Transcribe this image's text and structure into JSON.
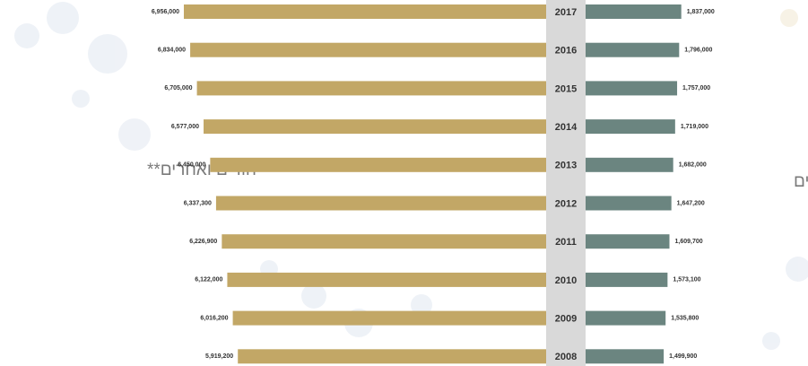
{
  "chart_data": {
    "type": "bar",
    "categories": [
      "2017",
      "2016",
      "2015",
      "2014",
      "2013",
      "2012",
      "2011",
      "2010",
      "2009",
      "2008"
    ],
    "series": [
      {
        "name": "יהודים ואחרים**",
        "color": "#c2a766",
        "values": [
          6956000,
          6834000,
          6705000,
          6577000,
          6450000,
          6337300,
          6226900,
          6122000,
          6016200,
          5919200
        ],
        "value_labels": [
          "6,956,000",
          "6,834,000",
          "6,705,000",
          "6,577,000",
          "6,450,000",
          "6,337,300",
          "6,226,900",
          "6,122,000",
          "6,016,200",
          "5,919,200"
        ]
      },
      {
        "name": "ערבים",
        "color": "#6b8580",
        "values": [
          1837000,
          1796000,
          1757000,
          1719000,
          1682000,
          1647200,
          1609700,
          1573100,
          1535800,
          1499900
        ],
        "value_labels": [
          "1,837,000",
          "1,796,000",
          "1,757,000",
          "1,719,000",
          "1,682,000",
          "1,647,200",
          "1,609,700",
          "1,573,100",
          "1,535,800",
          "1,499,900"
        ]
      }
    ]
  }
}
